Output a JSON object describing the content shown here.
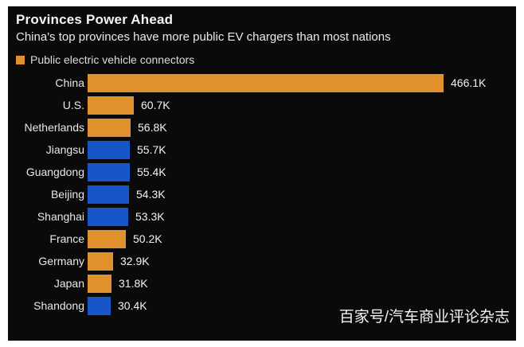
{
  "header": {
    "title": "Provinces Power Ahead",
    "subtitle": "China's top provinces have more public EV chargers than most nations"
  },
  "legend": {
    "label": "Public electric vehicle connectors"
  },
  "watermark": {
    "text": "百家号/汽车商业评论杂志"
  },
  "colors": {
    "panel_background": "#0a0a0a",
    "page_background": "#ffffff",
    "country_bar": "#e0912e",
    "province_bar": "#1656c8",
    "text": "#f3f3f0"
  },
  "chart_data": {
    "type": "bar",
    "orientation": "horizontal",
    "title": "Provinces Power Ahead",
    "subtitle": "China's top provinces have more public EV chargers than most nations",
    "legend_entries": [
      "Public electric vehicle connectors"
    ],
    "legend_position": "top-left",
    "grid": false,
    "xlabel": "",
    "ylabel": "",
    "xlim": [
      0,
      466.1
    ],
    "unit": "K connectors",
    "categories": [
      "China",
      "U.S.",
      "Netherlands",
      "Jiangsu",
      "Guangdong",
      "Beijing",
      "Shanghai",
      "France",
      "Germany",
      "Japan",
      "Shandong"
    ],
    "values": [
      466.1,
      60.7,
      56.8,
      55.7,
      55.4,
      54.3,
      53.3,
      50.2,
      32.9,
      31.8,
      30.4
    ],
    "value_labels": [
      "466.1K",
      "60.7K",
      "56.8K",
      "55.7K",
      "55.4K",
      "54.3K",
      "53.3K",
      "50.2K",
      "32.9K",
      "31.8K",
      "30.4K"
    ],
    "groups": [
      "country",
      "country",
      "country",
      "province",
      "province",
      "province",
      "province",
      "country",
      "country",
      "country",
      "province"
    ],
    "group_colors": {
      "country": "#e0912e",
      "province": "#1656c8"
    }
  }
}
